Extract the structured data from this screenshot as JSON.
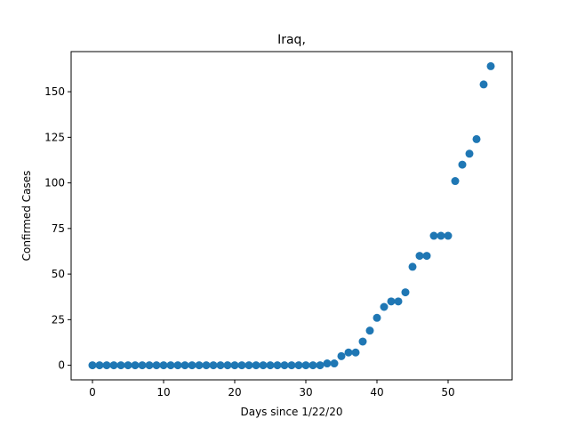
{
  "chart_data": {
    "type": "scatter",
    "title": "Iraq,",
    "xlabel": "Days since 1/22/20",
    "ylabel": "Confirmed Cases",
    "xlim": [
      -3,
      59
    ],
    "ylim": [
      -8,
      172
    ],
    "xticks": [
      0,
      10,
      20,
      30,
      40,
      50
    ],
    "yticks": [
      0,
      25,
      50,
      75,
      100,
      125,
      150
    ],
    "grid": false,
    "marker_color": "#1f77b4",
    "series": [
      {
        "x": [
          0,
          1,
          2,
          3,
          4,
          5,
          6,
          7,
          8,
          9,
          10,
          11,
          12,
          13,
          14,
          15,
          16,
          17,
          18,
          19,
          20,
          21,
          22,
          23,
          24,
          25,
          26,
          27,
          28,
          29,
          30,
          31,
          32,
          33,
          34,
          35,
          36,
          37,
          38,
          39,
          40,
          41,
          42,
          43,
          44,
          45,
          46,
          47,
          48,
          49,
          50,
          51,
          52,
          53,
          54,
          55,
          56
        ],
        "y": [
          0,
          0,
          0,
          0,
          0,
          0,
          0,
          0,
          0,
          0,
          0,
          0,
          0,
          0,
          0,
          0,
          0,
          0,
          0,
          0,
          0,
          0,
          0,
          0,
          0,
          0,
          0,
          0,
          0,
          0,
          0,
          0,
          0,
          1,
          1,
          5,
          7,
          7,
          13,
          19,
          26,
          32,
          35,
          35,
          40,
          54,
          60,
          60,
          71,
          71,
          71,
          101,
          110,
          116,
          124,
          154,
          164
        ]
      }
    ]
  }
}
